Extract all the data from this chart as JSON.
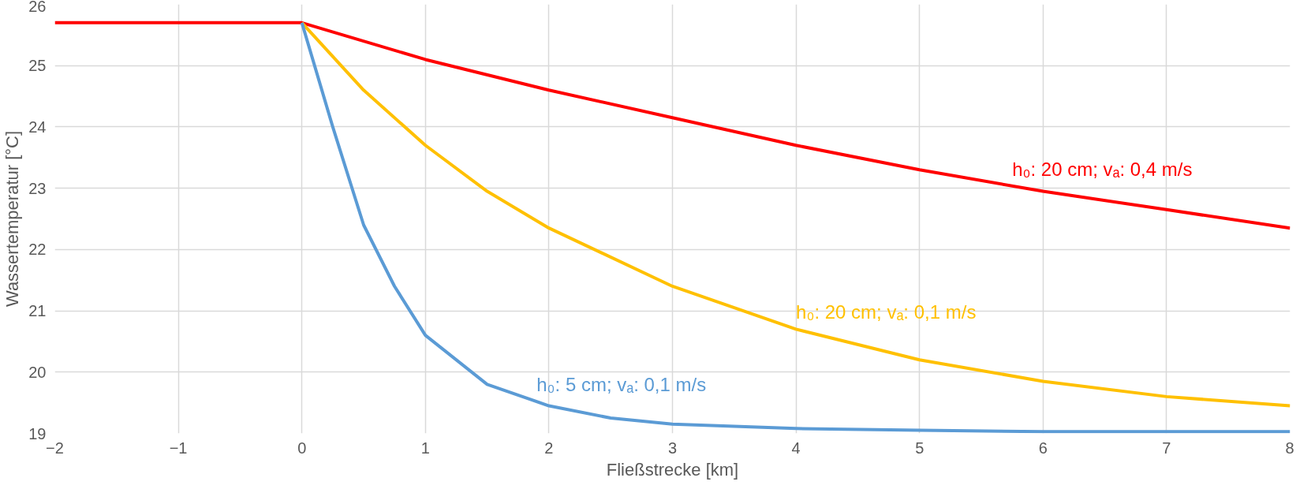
{
  "chart_data": {
    "type": "line",
    "xlabel": "Fließstrecke [km]",
    "ylabel": "Wassertemperatur [°C]",
    "xlim": [
      -2,
      8
    ],
    "xticks": [
      -2,
      -1,
      0,
      1,
      2,
      3,
      4,
      5,
      6,
      7,
      8
    ],
    "ylim": [
      19,
      26
    ],
    "yticks": [
      19,
      20,
      21,
      22,
      23,
      24,
      25,
      26
    ],
    "grid": true,
    "legend": false,
    "marker": "none",
    "line_style": "solid",
    "series": [
      {
        "name": "h₀: 20 cm;  vₐ: 0,4 m/s",
        "color": "#ff0000",
        "x": [
          -2,
          0,
          1,
          2,
          3,
          4,
          5,
          6,
          7,
          8
        ],
        "values": [
          25.7,
          25.7,
          25.1,
          24.6,
          24.15,
          23.7,
          23.3,
          22.95,
          22.65,
          22.35
        ]
      },
      {
        "name": "h₀: 20 cm;  vₐ: 0,1 m/s",
        "color": "#ffc000",
        "x": [
          0,
          0.5,
          1,
          1.5,
          2,
          3,
          4,
          5,
          6,
          7,
          8
        ],
        "values": [
          25.7,
          24.6,
          23.7,
          22.95,
          22.35,
          21.4,
          20.7,
          20.2,
          19.85,
          19.6,
          19.45
        ]
      },
      {
        "name": "h₀: 5 cm;  vₐ: 0,1 m/s",
        "color": "#5b9bd5",
        "x": [
          0,
          0.25,
          0.5,
          0.75,
          1,
          1.5,
          2,
          2.5,
          3,
          4,
          5,
          6,
          8
        ],
        "values": [
          25.7,
          24.0,
          22.4,
          21.4,
          20.6,
          19.8,
          19.45,
          19.25,
          19.15,
          19.08,
          19.05,
          19.03,
          19.03
        ]
      }
    ]
  }
}
